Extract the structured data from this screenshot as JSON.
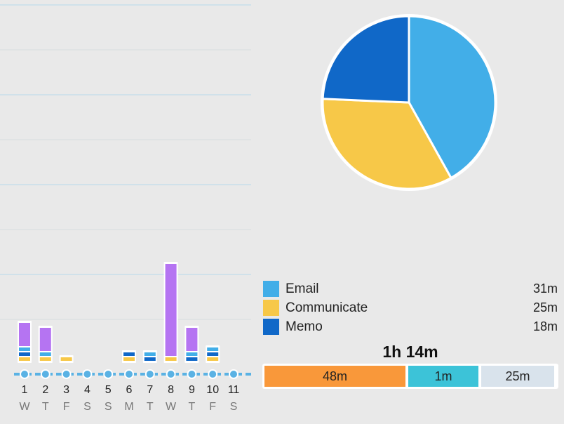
{
  "days": [
    {
      "num": "1",
      "dow": "W",
      "segments": [
        {
          "c": "#f7c848",
          "v": 1
        },
        {
          "c": "#1068c8",
          "v": 1
        },
        {
          "c": "#42aee8",
          "v": 1
        },
        {
          "c": "#b574f2",
          "v": 5
        }
      ]
    },
    {
      "num": "2",
      "dow": "T",
      "segments": [
        {
          "c": "#f7c848",
          "v": 1
        },
        {
          "c": "#42aee8",
          "v": 1
        },
        {
          "c": "#b574f2",
          "v": 5
        }
      ]
    },
    {
      "num": "3",
      "dow": "F",
      "segments": [
        {
          "c": "#f7c848",
          "v": 1
        }
      ]
    },
    {
      "num": "4",
      "dow": "S",
      "segments": []
    },
    {
      "num": "5",
      "dow": "S",
      "segments": []
    },
    {
      "num": "6",
      "dow": "M",
      "segments": [
        {
          "c": "#f7c848",
          "v": 1
        },
        {
          "c": "#1068c8",
          "v": 1
        }
      ]
    },
    {
      "num": "7",
      "dow": "T",
      "segments": [
        {
          "c": "#1068c8",
          "v": 1
        },
        {
          "c": "#42aee8",
          "v": 1
        }
      ]
    },
    {
      "num": "8",
      "dow": "W",
      "segments": [
        {
          "c": "#f7c848",
          "v": 1
        },
        {
          "c": "#b574f2",
          "v": 19
        }
      ]
    },
    {
      "num": "9",
      "dow": "T",
      "segments": [
        {
          "c": "#1068c8",
          "v": 1
        },
        {
          "c": "#42aee8",
          "v": 1
        },
        {
          "c": "#b574f2",
          "v": 5
        }
      ]
    },
    {
      "num": "10",
      "dow": "F",
      "segments": [
        {
          "c": "#f7c848",
          "v": 1
        },
        {
          "c": "#1068c8",
          "v": 1
        },
        {
          "c": "#42aee8",
          "v": 1
        }
      ]
    },
    {
      "num": "11",
      "dow": "S",
      "segments": []
    }
  ],
  "pie": [
    {
      "name": "Email",
      "minutes": 31,
      "color": "#42aee8"
    },
    {
      "name": "Communicate",
      "minutes": 25,
      "color": "#f7c848"
    },
    {
      "name": "Memo",
      "minutes": 18,
      "color": "#1068c8"
    }
  ],
  "legend": [
    {
      "label": "Email",
      "value": "31m",
      "color": "#42aee8"
    },
    {
      "label": "Communicate",
      "value": "25m",
      "color": "#f7c848"
    },
    {
      "label": "Memo",
      "value": "18m",
      "color": "#1068c8"
    }
  ],
  "total": "1h 14m",
  "breakdown": [
    {
      "label": "48m",
      "minutes": 48,
      "color": "#f9983a"
    },
    {
      "label": "1m",
      "minutes": 1,
      "color": "#3cc3d8"
    },
    {
      "label": "25m",
      "minutes": 25,
      "color": "#d9e3ec"
    }
  ]
}
